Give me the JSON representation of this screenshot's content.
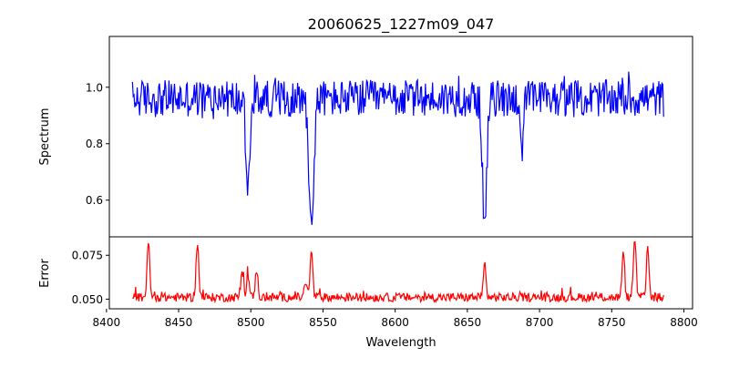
{
  "chart_data": [
    {
      "type": "line",
      "title": "20060625_1227m09_047",
      "xlabel": "",
      "ylabel": "Spectrum",
      "xlim": [
        8402,
        8806
      ],
      "ylim": [
        0.47,
        1.18
      ],
      "xticks": [
        8400,
        8450,
        8500,
        8550,
        8600,
        8650,
        8700,
        8750,
        8800
      ],
      "yticks": [
        0.6,
        0.8,
        1.0
      ],
      "ytick_labels": [
        "0.6",
        "0.8",
        "1.0"
      ],
      "series": [
        {
          "name": "Spectrum",
          "color": "#0000ff",
          "x_start": 8418,
          "x_end": 8786,
          "baseline": 0.96,
          "noise_amplitude": 0.06,
          "absorption_lines": [
            {
              "center": 8498,
              "depth": 0.3,
              "width": 1.6
            },
            {
              "center": 8542,
              "depth": 0.47,
              "width": 1.6
            },
            {
              "center": 8662,
              "depth": 0.44,
              "width": 1.5
            },
            {
              "center": 8688,
              "depth": 0.18,
              "width": 1.0
            }
          ]
        }
      ],
      "grid": false
    },
    {
      "type": "line",
      "title": "",
      "xlabel": "Wavelength",
      "ylabel": "Error",
      "xlim": [
        8402,
        8806
      ],
      "ylim": [
        0.0445,
        0.0855
      ],
      "xticks": [
        8400,
        8450,
        8500,
        8550,
        8600,
        8650,
        8700,
        8750,
        8800
      ],
      "xtick_labels": [
        "8400",
        "8450",
        "8500",
        "8550",
        "8600",
        "8650",
        "8700",
        "8750",
        "8800"
      ],
      "yticks": [
        0.05,
        0.075
      ],
      "ytick_labels": [
        "0.050",
        "0.075"
      ],
      "series": [
        {
          "name": "Error",
          "color": "#ff0000",
          "x_start": 8418,
          "x_end": 8786,
          "baseline": 0.051,
          "noise_amplitude": 0.0025,
          "peaks": [
            {
              "center": 8429,
              "height": 0.083
            },
            {
              "center": 8463,
              "height": 0.083
            },
            {
              "center": 8494,
              "height": 0.067
            },
            {
              "center": 8498,
              "height": 0.064
            },
            {
              "center": 8504,
              "height": 0.067
            },
            {
              "center": 8538,
              "height": 0.06
            },
            {
              "center": 8542,
              "height": 0.078
            },
            {
              "center": 8662,
              "height": 0.07
            },
            {
              "center": 8758,
              "height": 0.075
            },
            {
              "center": 8766,
              "height": 0.085
            },
            {
              "center": 8775,
              "height": 0.08
            }
          ]
        }
      ],
      "grid": false
    }
  ]
}
